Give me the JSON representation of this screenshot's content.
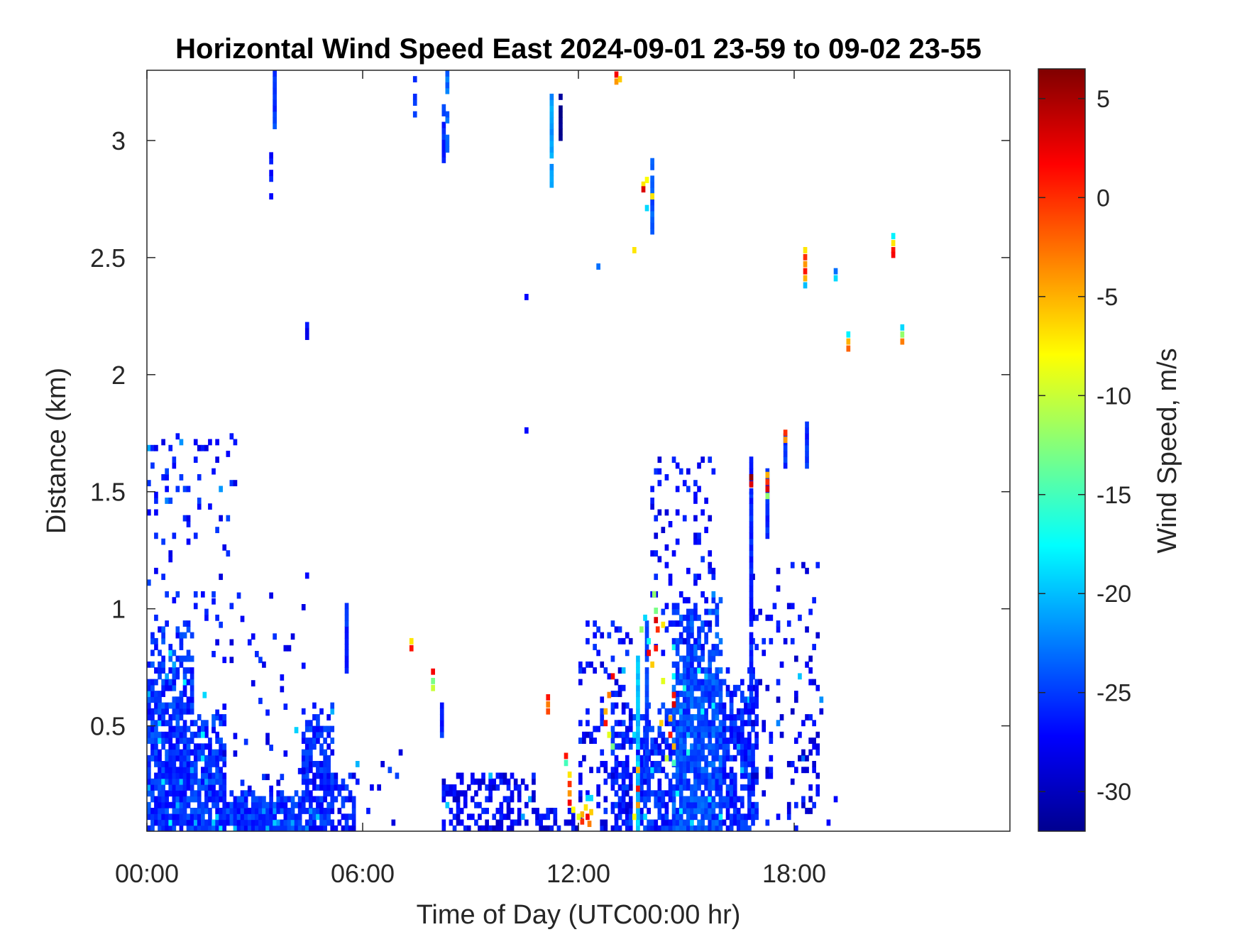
{
  "chart_data": {
    "type": "heatmap",
    "title": "Horizontal Wind Speed East 2024-09-01 23-59 to 09-02 23-55",
    "xlabel": "Time of Day (UTC00:00 hr)",
    "ylabel": "Distance (km)",
    "xlim_hours": [
      0,
      24
    ],
    "ylim_km": [
      0.05,
      3.3
    ],
    "x_ticks": [
      {
        "value": 0,
        "label": "00:00"
      },
      {
        "value": 6,
        "label": "06:00"
      },
      {
        "value": 12,
        "label": "12:00"
      },
      {
        "value": 18,
        "label": "18:00"
      }
    ],
    "y_ticks": [
      {
        "value": 0.5,
        "label": "0.5"
      },
      {
        "value": 1,
        "label": "1"
      },
      {
        "value": 1.5,
        "label": "1.5"
      },
      {
        "value": 2,
        "label": "2"
      },
      {
        "value": 2.5,
        "label": "2.5"
      },
      {
        "value": 3,
        "label": "3"
      }
    ],
    "colorbar": {
      "label": "Wind Speed, m/s",
      "colormap": "jet",
      "range": [
        -32,
        6.5
      ],
      "ticks": [
        {
          "value": 5,
          "label": "5"
        },
        {
          "value": 0,
          "label": "0"
        },
        {
          "value": -5,
          "label": "-5"
        },
        {
          "value": -10,
          "label": "-10"
        },
        {
          "value": -15,
          "label": "-15"
        },
        {
          "value": -20,
          "label": "-20"
        },
        {
          "value": -25,
          "label": "-25"
        },
        {
          "value": -30,
          "label": "-30"
        }
      ]
    },
    "grid": false,
    "background_color": "#ffffff",
    "cell_size": {
      "dt_hours": 0.1,
      "dz_km": 0.025
    },
    "regions": [
      {
        "kind": "dense",
        "x0": 0.0,
        "x1": 1.3,
        "z0": 0.05,
        "z1": 0.95,
        "v": -25.5,
        "fill": 0.85
      },
      {
        "kind": "dense",
        "x0": 1.3,
        "x1": 2.2,
        "z0": 0.05,
        "z1": 0.55,
        "v": -25.5,
        "fill": 0.85
      },
      {
        "kind": "dense",
        "x0": 2.2,
        "x1": 4.3,
        "z0": 0.05,
        "z1": 0.22,
        "v": -25.5,
        "fill": 0.9
      },
      {
        "kind": "dense",
        "x0": 4.3,
        "x1": 5.2,
        "z0": 0.05,
        "z1": 0.6,
        "v": -26,
        "fill": 0.8
      },
      {
        "kind": "dense",
        "x0": 5.2,
        "x1": 5.8,
        "z0": 0.05,
        "z1": 0.3,
        "v": -26.5,
        "fill": 0.7
      },
      {
        "kind": "dense",
        "x0": 14.6,
        "x1": 16.0,
        "z0": 0.05,
        "z1": 1.05,
        "v": -24.5,
        "fill": 0.85
      },
      {
        "kind": "dense",
        "x0": 16.0,
        "x1": 17.0,
        "z0": 0.05,
        "z1": 0.75,
        "v": -26,
        "fill": 0.7
      },
      {
        "kind": "dense",
        "x0": 12.9,
        "x1": 14.6,
        "z0": 0.05,
        "z1": 0.6,
        "v": -26,
        "fill": 0.55
      },
      {
        "kind": "sparse",
        "x0": 0.0,
        "x1": 2.5,
        "z0": 0.9,
        "z1": 1.75,
        "v": -26.5,
        "fill": 0.09
      },
      {
        "kind": "sparse",
        "x0": 1.8,
        "x1": 4.5,
        "z0": 0.22,
        "z1": 1.05,
        "v": -27,
        "fill": 0.05
      },
      {
        "kind": "sparse",
        "x0": 5.8,
        "x1": 7.2,
        "z0": 0.05,
        "z1": 0.4,
        "v": -26.5,
        "fill": 0.07
      },
      {
        "kind": "sparse",
        "x0": 8.2,
        "x1": 10.8,
        "z0": 0.05,
        "z1": 0.3,
        "v": -27.5,
        "fill": 0.45
      },
      {
        "kind": "sparse",
        "x0": 10.8,
        "x1": 12.0,
        "z0": 0.05,
        "z1": 0.15,
        "v": -27.5,
        "fill": 0.5
      },
      {
        "kind": "sparse",
        "x0": 12.0,
        "x1": 13.5,
        "z0": 0.05,
        "z1": 0.95,
        "v": -27,
        "fill": 0.22
      },
      {
        "kind": "sparse",
        "x0": 14.0,
        "x1": 15.8,
        "z0": 0.8,
        "z1": 1.65,
        "v": -27,
        "fill": 0.14
      },
      {
        "kind": "sparse",
        "x0": 16.8,
        "x1": 18.8,
        "z0": 0.05,
        "z1": 1.2,
        "v": -27.5,
        "fill": 0.12
      },
      {
        "kind": "sparse",
        "x0": 18.8,
        "x1": 19.2,
        "z0": 0.05,
        "z1": 0.2,
        "v": -27,
        "fill": 0.1
      }
    ],
    "columns": [
      {
        "x": 3.5,
        "z0": 3.05,
        "z1": 3.3,
        "v": -25
      },
      {
        "x": 3.4,
        "z0": 2.75,
        "z1": 2.95,
        "v": -27,
        "fill": 0.6
      },
      {
        "x": 4.4,
        "z0": 2.15,
        "z1": 2.22,
        "v": -27
      },
      {
        "x": 5.5,
        "z0": 0.7,
        "z1": 1.02,
        "v": -25.5
      },
      {
        "x": 7.4,
        "z0": 3.1,
        "z1": 3.28,
        "v": -25,
        "fill": 0.7
      },
      {
        "x": 8.2,
        "z0": 2.88,
        "z1": 3.15,
        "v": -25.5
      },
      {
        "x": 8.3,
        "z0": 2.95,
        "z1": 3.28,
        "v": -23,
        "fill": 0.6
      },
      {
        "x": 11.2,
        "z0": 2.8,
        "z1": 3.2,
        "v": -21.5
      },
      {
        "x": 11.45,
        "z0": 3.0,
        "z1": 3.2,
        "v": -31
      },
      {
        "x": 14.0,
        "z0": 2.6,
        "z1": 2.95,
        "v": -24
      },
      {
        "x": 13.6,
        "z0": 0.05,
        "z1": 0.78,
        "v": -19.5
      },
      {
        "x": 13.85,
        "z0": 0.3,
        "z1": 0.95,
        "v": -25
      },
      {
        "x": 16.75,
        "z0": 0.6,
        "z1": 1.65,
        "v": -26
      },
      {
        "x": 17.2,
        "z0": 1.3,
        "z1": 1.6,
        "v": -26
      },
      {
        "x": 17.7,
        "z0": 1.6,
        "z1": 1.75,
        "v": -25.5
      },
      {
        "x": 18.3,
        "z0": 1.6,
        "z1": 1.78,
        "v": -25.5
      },
      {
        "x": 8.15,
        "z0": 0.45,
        "z1": 0.58,
        "v": -26
      }
    ],
    "points": [
      {
        "x": 13.0,
        "z": 3.27,
        "v": 2
      },
      {
        "x": 13.0,
        "z": 3.24,
        "v": -4
      },
      {
        "x": 13.1,
        "z": 3.25,
        "v": -6
      },
      {
        "x": 13.5,
        "z": 2.52,
        "v": -7
      },
      {
        "x": 13.75,
        "z": 2.8,
        "v": -7
      },
      {
        "x": 13.75,
        "z": 2.78,
        "v": 3
      },
      {
        "x": 13.85,
        "z": 2.82,
        "v": -8
      },
      {
        "x": 13.85,
        "z": 2.7,
        "v": -19
      },
      {
        "x": 14.0,
        "z": 2.75,
        "v": -7
      },
      {
        "x": 12.5,
        "z": 2.45,
        "v": -23
      },
      {
        "x": 10.5,
        "z": 2.32,
        "v": -27
      },
      {
        "x": 10.5,
        "z": 1.75,
        "v": -27
      },
      {
        "x": 4.4,
        "z": 1.13,
        "v": -27
      },
      {
        "x": 18.25,
        "z": 2.52,
        "v": -7
      },
      {
        "x": 18.25,
        "z": 2.49,
        "v": 0
      },
      {
        "x": 18.25,
        "z": 2.46,
        "v": -4
      },
      {
        "x": 18.25,
        "z": 2.43,
        "v": 1
      },
      {
        "x": 18.25,
        "z": 2.4,
        "v": -5
      },
      {
        "x": 18.25,
        "z": 2.37,
        "v": -20
      },
      {
        "x": 19.1,
        "z": 2.43,
        "v": -23
      },
      {
        "x": 19.1,
        "z": 2.4,
        "v": -19
      },
      {
        "x": 19.45,
        "z": 2.16,
        "v": -18
      },
      {
        "x": 19.45,
        "z": 2.13,
        "v": -5
      },
      {
        "x": 19.45,
        "z": 2.1,
        "v": -2
      },
      {
        "x": 20.7,
        "z": 2.58,
        "v": -18
      },
      {
        "x": 20.7,
        "z": 2.55,
        "v": -7
      },
      {
        "x": 20.7,
        "z": 2.52,
        "v": 1
      },
      {
        "x": 20.7,
        "z": 2.5,
        "v": 2
      },
      {
        "x": 20.95,
        "z": 2.19,
        "v": -19
      },
      {
        "x": 20.95,
        "z": 2.16,
        "v": -12
      },
      {
        "x": 20.95,
        "z": 2.13,
        "v": -3
      },
      {
        "x": 16.75,
        "z": 1.55,
        "v": 6
      },
      {
        "x": 16.75,
        "z": 1.52,
        "v": 3
      },
      {
        "x": 16.75,
        "z": 1.49,
        "v": -26
      },
      {
        "x": 17.2,
        "z": 1.56,
        "v": -5
      },
      {
        "x": 17.2,
        "z": 1.53,
        "v": 0
      },
      {
        "x": 17.2,
        "z": 1.5,
        "v": 3
      },
      {
        "x": 17.2,
        "z": 1.47,
        "v": -12
      },
      {
        "x": 17.7,
        "z": 1.74,
        "v": 0
      },
      {
        "x": 17.7,
        "z": 1.71,
        "v": -4
      },
      {
        "x": 7.3,
        "z": 0.85,
        "v": -7
      },
      {
        "x": 7.3,
        "z": 0.82,
        "v": 1
      },
      {
        "x": 7.9,
        "z": 0.72,
        "v": 2
      },
      {
        "x": 7.9,
        "z": 0.68,
        "v": -13
      },
      {
        "x": 7.9,
        "z": 0.65,
        "v": -10
      },
      {
        "x": 11.1,
        "z": 0.61,
        "v": 1
      },
      {
        "x": 11.1,
        "z": 0.58,
        "v": -3
      },
      {
        "x": 11.1,
        "z": 0.55,
        "v": -1
      },
      {
        "x": 11.6,
        "z": 0.36,
        "v": 1
      },
      {
        "x": 11.6,
        "z": 0.33,
        "v": -15
      },
      {
        "x": 11.7,
        "z": 0.28,
        "v": -7
      },
      {
        "x": 11.7,
        "z": 0.24,
        "v": 0
      },
      {
        "x": 11.7,
        "z": 0.2,
        "v": -4
      },
      {
        "x": 11.7,
        "z": 0.16,
        "v": 2
      },
      {
        "x": 11.8,
        "z": 0.13,
        "v": -8
      },
      {
        "x": 12.05,
        "z": 0.08,
        "v": 0
      },
      {
        "x": 12.05,
        "z": 0.11,
        "v": -5
      },
      {
        "x": 12.15,
        "z": 0.14,
        "v": -7
      },
      {
        "x": 12.2,
        "z": 0.1,
        "v": 2
      },
      {
        "x": 12.25,
        "z": 0.07,
        "v": -3
      },
      {
        "x": 12.3,
        "z": 0.12,
        "v": -6
      },
      {
        "x": 12.3,
        "z": 0.18,
        "v": -19
      },
      {
        "x": 12.2,
        "z": 0.18,
        "v": -19
      },
      {
        "x": 11.95,
        "z": 0.1,
        "v": -9
      },
      {
        "x": 12.7,
        "z": 0.55,
        "v": -5
      },
      {
        "x": 12.7,
        "z": 0.5,
        "v": 1
      },
      {
        "x": 12.8,
        "z": 0.45,
        "v": -9
      },
      {
        "x": 12.8,
        "z": 0.62,
        "v": -3
      },
      {
        "x": 12.9,
        "z": 0.4,
        "v": -13
      },
      {
        "x": 12.9,
        "z": 0.7,
        "v": 2
      },
      {
        "x": 13.6,
        "z": 0.3,
        "v": -5
      },
      {
        "x": 13.6,
        "z": 0.22,
        "v": 1
      },
      {
        "x": 13.6,
        "z": 0.15,
        "v": -4
      },
      {
        "x": 13.5,
        "z": 0.1,
        "v": -8
      },
      {
        "x": 13.9,
        "z": 0.85,
        "v": -17
      },
      {
        "x": 13.9,
        "z": 0.8,
        "v": 2
      },
      {
        "x": 14.0,
        "z": 0.75,
        "v": -6
      },
      {
        "x": 14.1,
        "z": 0.82,
        "v": 1
      },
      {
        "x": 14.1,
        "z": 0.98,
        "v": -13
      },
      {
        "x": 14.1,
        "z": 0.94,
        "v": 3
      },
      {
        "x": 14.15,
        "z": 0.9,
        "v": 0
      },
      {
        "x": 14.05,
        "z": 1.05,
        "v": -12
      },
      {
        "x": 14.3,
        "z": 0.92,
        "v": -7
      },
      {
        "x": 14.3,
        "z": 0.68,
        "v": -9
      },
      {
        "x": 13.8,
        "z": 0.95,
        "v": -19
      },
      {
        "x": 13.7,
        "z": 0.9,
        "v": -12
      },
      {
        "x": 14.6,
        "z": 0.62,
        "v": 1
      },
      {
        "x": 14.6,
        "z": 0.58,
        "v": 3
      },
      {
        "x": 14.5,
        "z": 0.52,
        "v": -5
      },
      {
        "x": 14.5,
        "z": 0.45,
        "v": 1
      },
      {
        "x": 14.6,
        "z": 0.4,
        "v": -5
      },
      {
        "x": 14.6,
        "z": 0.33,
        "v": -15
      },
      {
        "x": 14.4,
        "z": 0.35,
        "v": -10
      },
      {
        "x": 14.25,
        "z": 0.5,
        "v": -6
      },
      {
        "x": 1.5,
        "z": 0.45,
        "v": -18
      },
      {
        "x": 1.55,
        "z": 0.62,
        "v": -19
      },
      {
        "x": 3.2,
        "z": 0.75,
        "v": -28
      }
    ]
  }
}
